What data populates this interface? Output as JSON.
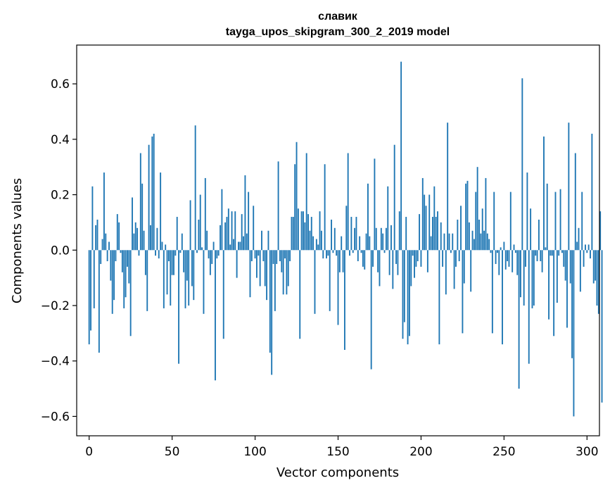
{
  "chart_data": {
    "type": "bar",
    "title": "славик",
    "subtitle": "tayga_upos_skipgram_300_2_2019 model",
    "xlabel": "Vector components",
    "ylabel": "Components values",
    "xlim": [
      -7.5,
      307.5
    ],
    "ylim": [
      -0.67,
      0.74
    ],
    "xticks": [
      0,
      50,
      100,
      150,
      200,
      250,
      300
    ],
    "xtick_labels": [
      "0",
      "50",
      "100",
      "150",
      "200",
      "250",
      "300"
    ],
    "yticks": [
      -0.6,
      -0.4,
      -0.2,
      0.0,
      0.2,
      0.4,
      0.6
    ],
    "ytick_labels": [
      "−0.6",
      "−0.4",
      "−0.2",
      "0.0",
      "0.2",
      "0.4",
      "0.6"
    ],
    "grid": false,
    "bar_color": "#1f77b4",
    "values": [
      -0.34,
      -0.29,
      0.23,
      -0.21,
      0.09,
      0.11,
      -0.37,
      -0.05,
      0.04,
      0.28,
      0.06,
      -0.04,
      0.03,
      -0.11,
      -0.23,
      -0.18,
      -0.04,
      0.13,
      0.1,
      -0.01,
      -0.08,
      -0.21,
      -0.17,
      -0.06,
      -0.12,
      -0.31,
      0.19,
      0.06,
      0.1,
      0.08,
      -0.02,
      0.35,
      0.24,
      0.07,
      -0.09,
      -0.22,
      0.38,
      0.09,
      0.41,
      0.42,
      -0.02,
      0.08,
      -0.03,
      0.28,
      0.03,
      -0.21,
      0.02,
      -0.16,
      -0.04,
      -0.2,
      -0.09,
      -0.09,
      -0.02,
      0.12,
      -0.41,
      -0.01,
      0.06,
      -0.08,
      -0.21,
      -0.11,
      -0.2,
      0.18,
      -0.13,
      -0.18,
      0.45,
      -0.01,
      0.11,
      0.2,
      0.01,
      -0.23,
      0.26,
      0.07,
      -0.03,
      -0.09,
      -0.05,
      0.03,
      -0.47,
      -0.03,
      -0.02,
      0.09,
      0.22,
      -0.32,
      0.1,
      0.12,
      0.15,
      0.02,
      0.14,
      0.04,
      0.14,
      -0.1,
      0.03,
      0.03,
      0.13,
      0.05,
      0.27,
      0.06,
      0.21,
      -0.17,
      -0.04,
      0.16,
      -0.03,
      -0.1,
      -0.02,
      -0.13,
      0.07,
      -0.04,
      -0.13,
      -0.18,
      0.07,
      -0.37,
      -0.45,
      -0.05,
      -0.22,
      -0.05,
      0.32,
      -0.04,
      -0.08,
      -0.16,
      -0.03,
      -0.16,
      -0.13,
      -0.04,
      0.12,
      0.12,
      0.31,
      0.39,
      0.15,
      -0.32,
      0.14,
      0.14,
      0.1,
      0.35,
      0.13,
      0.07,
      0.12,
      0.05,
      -0.23,
      0.04,
      0.02,
      0.14,
      0.07,
      -0.03,
      0.31,
      -0.03,
      -0.02,
      -0.22,
      0.11,
      -0.01,
      0.08,
      -0.02,
      -0.27,
      -0.08,
      0.05,
      -0.08,
      -0.36,
      0.16,
      0.35,
      -0.02,
      0.12,
      -0.01,
      0.08,
      0.12,
      -0.04,
      0.05,
      -0.01,
      -0.06,
      -0.07,
      0.06,
      0.24,
      0.05,
      -0.43,
      -0.06,
      0.33,
      0.08,
      -0.08,
      -0.13,
      0.08,
      0.06,
      -0.01,
      0.08,
      0.23,
      -0.09,
      0.09,
      -0.14,
      0.38,
      -0.05,
      -0.09,
      0.14,
      0.68,
      -0.32,
      -0.26,
      0.12,
      -0.34,
      -0.31,
      -0.13,
      -0.02,
      -0.1,
      -0.06,
      -0.04,
      0.13,
      -0.06,
      0.26,
      0.2,
      0.16,
      -0.08,
      0.2,
      0.05,
      0.12,
      0.23,
      0.12,
      0.14,
      -0.34,
      0.1,
      -0.06,
      0.06,
      -0.16,
      0.46,
      0.06,
      -0.01,
      0.06,
      -0.14,
      -0.06,
      0.11,
      -0.04,
      0.16,
      -0.3,
      -0.12,
      0.24,
      0.25,
      0.1,
      -0.15,
      0.07,
      0.04,
      0.21,
      0.3,
      0.11,
      0.06,
      0.15,
      0.07,
      0.26,
      0.06,
      0.04,
      -0.01,
      -0.3,
      0.21,
      -0.05,
      -0.01,
      -0.09,
      0.01,
      -0.34,
      0.03,
      -0.07,
      -0.04,
      -0.06,
      0.21,
      -0.08,
      0.02,
      -0.01,
      -0.09,
      -0.5,
      -0.17,
      0.62,
      -0.2,
      -0.06,
      0.28,
      -0.41,
      0.15,
      -0.21,
      -0.2,
      -0.02,
      -0.04,
      0.11,
      -0.04,
      -0.08,
      0.41,
      0.01,
      0.24,
      -0.25,
      -0.02,
      -0.02,
      -0.31,
      0.21,
      -0.19,
      -0.02,
      0.22,
      -0.01,
      -0.06,
      -0.11,
      -0.28,
      0.46,
      -0.12,
      -0.39,
      -0.6,
      0.35,
      0.03,
      0.08,
      -0.15,
      0.21,
      -0.06,
      0.02,
      -0.01,
      0.02,
      -0.03,
      0.42,
      -0.12,
      -0.11,
      -0.2,
      -0.23,
      0.14,
      -0.55
    ]
  }
}
